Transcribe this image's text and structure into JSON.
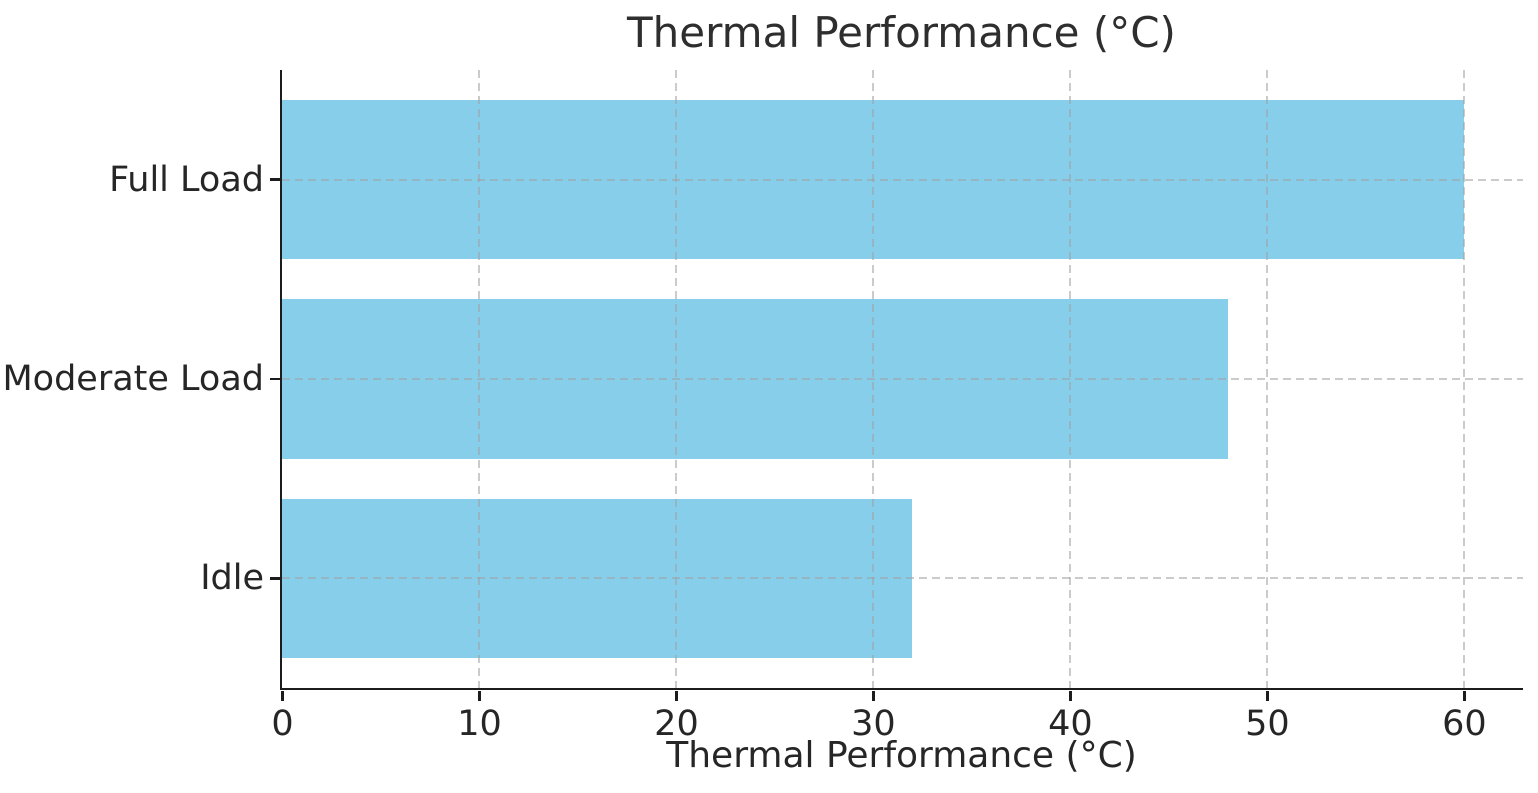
{
  "figure": {
    "background": "#ffffff"
  },
  "chart_data": {
    "type": "bar",
    "orientation": "horizontal",
    "title": "Thermal Performance (°C)",
    "xlabel": "Thermal Performance (°C)",
    "ylabel": "",
    "categories": [
      "Full Load",
      "Moderate Load",
      "Idle"
    ],
    "values": [
      60,
      48,
      32
    ],
    "xlim": [
      0,
      63
    ],
    "xticks": [
      0,
      10,
      20,
      30,
      40,
      50,
      60
    ],
    "bar_color": "#87CEEB",
    "grid": true,
    "grid_style": "dashed",
    "grid_color": "#cccccc",
    "axis_color": "#1c1c1c",
    "text_color": "#262626",
    "legend_position": "none"
  }
}
